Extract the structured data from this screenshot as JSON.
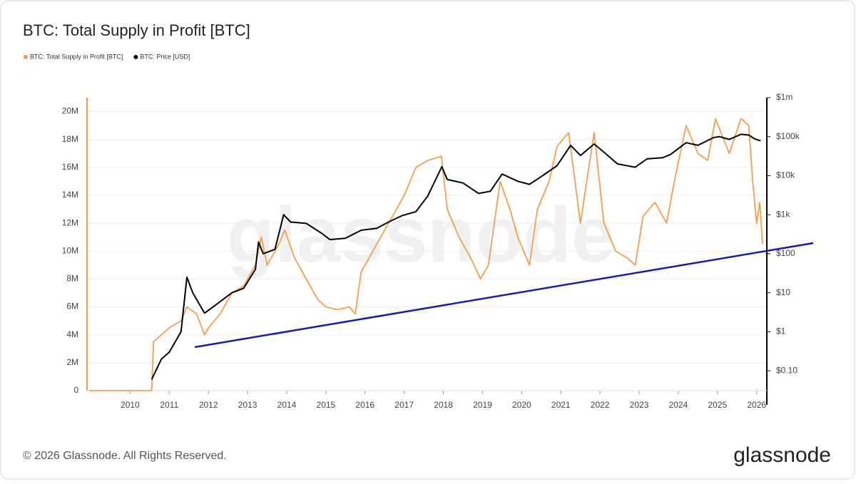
{
  "chart_data": {
    "type": "line",
    "title": "BTC: Total Supply in Profit [BTC]",
    "watermark": "glassnode",
    "copyright": "© 2026 Glassnode. All Rights Reserved.",
    "logo": "glassnode",
    "grid": true,
    "legend": "top-left",
    "xlim": [
      2008.9,
      2026.26
    ],
    "xticks": [
      2010,
      2011,
      2012,
      2013,
      2014,
      2015,
      2016,
      2017,
      2018,
      2019,
      2020,
      2021,
      2022,
      2023,
      2024,
      2025,
      2026
    ],
    "ylim": [
      0,
      21000000
    ],
    "yticks": [
      0,
      {
        "value": 2000000,
        "label": "2M"
      },
      {
        "value": 4000000,
        "label": "4M"
      },
      {
        "value": 6000000,
        "label": "6M"
      },
      {
        "value": 8000000,
        "label": "8M"
      },
      {
        "value": 10000000,
        "label": "10M"
      },
      {
        "value": 12000000,
        "label": "12M"
      },
      {
        "value": 14000000,
        "label": "14M"
      },
      {
        "value": 16000000,
        "label": "16M"
      },
      {
        "value": 18000000,
        "label": "18M"
      },
      {
        "value": 20000000,
        "label": "20M"
      }
    ],
    "y2lim": [
      0.031,
      1000000
    ],
    "y2scale": "log",
    "y2ticks": [
      {
        "value": 0.1,
        "label": "$0.10"
      },
      {
        "value": 1,
        "label": "$1"
      },
      {
        "value": 10,
        "label": "$10"
      },
      {
        "value": 100,
        "label": "$100"
      },
      {
        "value": 1000,
        "label": "$1k"
      },
      {
        "value": 10000,
        "label": "$10k"
      },
      {
        "value": 100000,
        "label": "$100k"
      },
      {
        "value": 1000000,
        "label": "$1m"
      }
    ],
    "series": [
      {
        "name": "BTC: Total Supply in Profit [BTC]",
        "color": "#f0a04b",
        "x": [
          2008.95,
          2010.55,
          2010.6,
          2010.8,
          2011.0,
          2011.3,
          2011.45,
          2011.7,
          2011.9,
          2012.0,
          2012.3,
          2012.6,
          2012.9,
          2013.2,
          2013.35,
          2013.5,
          2013.8,
          2013.95,
          2014.2,
          2014.5,
          2014.8,
          2015.0,
          2015.3,
          2015.6,
          2015.75,
          2015.9,
          2016.2,
          2016.5,
          2016.7,
          2017.0,
          2017.3,
          2017.6,
          2017.95,
          2018.1,
          2018.4,
          2018.7,
          2018.95,
          2019.15,
          2019.45,
          2019.7,
          2019.9,
          2020.2,
          2020.4,
          2020.7,
          2020.9,
          2021.2,
          2021.5,
          2021.85,
          2022.1,
          2022.4,
          2022.7,
          2022.9,
          2023.1,
          2023.4,
          2023.7,
          2023.9,
          2024.2,
          2024.5,
          2024.75,
          2024.95,
          2025.3,
          2025.6,
          2025.8,
          2025.9,
          2026.0,
          2026.08,
          2026.15
        ],
        "values": [
          0,
          0,
          3500000,
          4000000,
          4500000,
          5000000,
          6000000,
          5500000,
          4000000,
          4500000,
          5500000,
          7000000,
          7500000,
          9000000,
          11000000,
          9000000,
          10500000,
          11500000,
          9500000,
          8000000,
          6500000,
          6000000,
          5800000,
          6000000,
          5500000,
          8500000,
          10000000,
          11500000,
          12500000,
          14000000,
          16000000,
          16500000,
          16800000,
          13000000,
          11000000,
          9500000,
          8000000,
          9000000,
          15000000,
          13000000,
          11000000,
          9000000,
          13000000,
          15000000,
          17500000,
          18500000,
          12000000,
          18500000,
          12000000,
          10000000,
          9500000,
          9000000,
          12500000,
          13500000,
          12000000,
          15000000,
          19000000,
          17000000,
          16500000,
          19500000,
          17000000,
          19500000,
          19000000,
          15000000,
          12000000,
          13500000,
          10500000
        ]
      },
      {
        "name": "BTC: Price [USD]",
        "color": "#000000",
        "axis": "y2",
        "x": [
          2010.55,
          2010.8,
          2011.0,
          2011.3,
          2011.45,
          2011.6,
          2011.9,
          2012.2,
          2012.6,
          2012.9,
          2013.2,
          2013.28,
          2013.4,
          2013.7,
          2013.92,
          2014.1,
          2014.5,
          2014.9,
          2015.1,
          2015.5,
          2015.9,
          2016.3,
          2016.6,
          2016.95,
          2017.3,
          2017.6,
          2017.96,
          2018.1,
          2018.5,
          2018.9,
          2019.2,
          2019.5,
          2019.9,
          2020.2,
          2020.5,
          2020.9,
          2021.25,
          2021.5,
          2021.85,
          2022.1,
          2022.45,
          2022.9,
          2023.2,
          2023.6,
          2023.8,
          2024.2,
          2024.5,
          2024.9,
          2025.05,
          2025.3,
          2025.6,
          2025.8,
          2025.95,
          2026.1
        ],
        "values": [
          0.06,
          0.2,
          0.3,
          1,
          25,
          10,
          3,
          5,
          10,
          13,
          40,
          200,
          100,
          130,
          1000,
          650,
          600,
          330,
          230,
          250,
          400,
          450,
          650,
          950,
          1200,
          3000,
          17000,
          8000,
          6500,
          3500,
          4000,
          11000,
          7200,
          6000,
          9500,
          18000,
          60000,
          33000,
          65000,
          40000,
          20000,
          16500,
          27000,
          29000,
          35000,
          70000,
          60000,
          95000,
          100000,
          85000,
          115000,
          110000,
          88000,
          78000
        ]
      }
    ]
  }
}
